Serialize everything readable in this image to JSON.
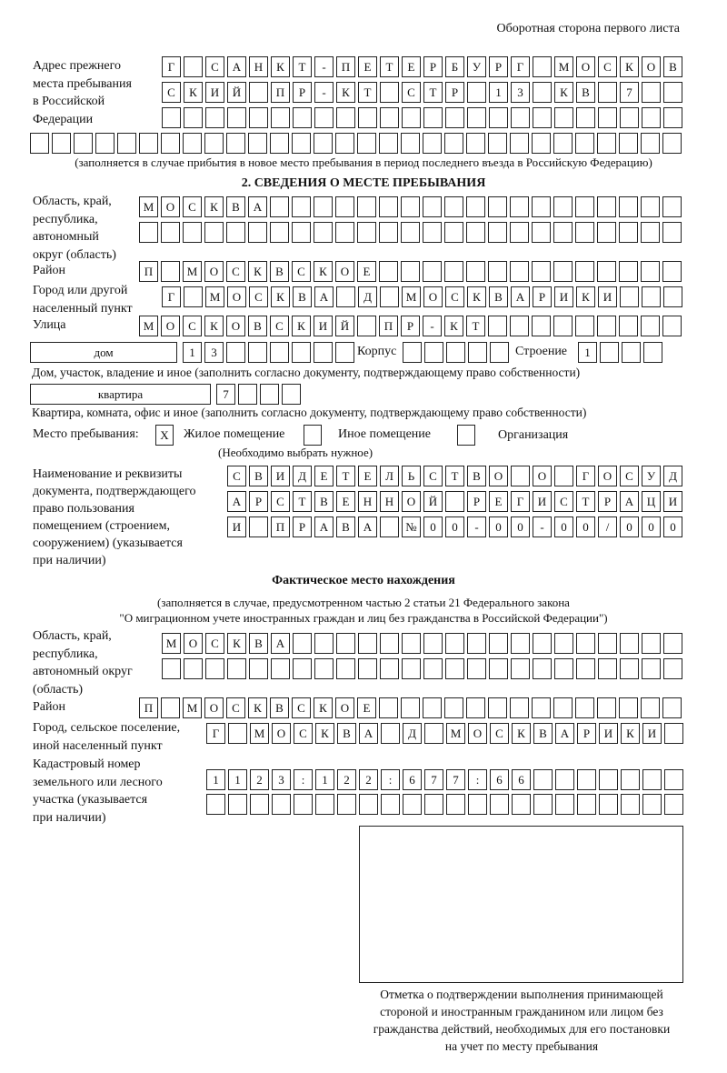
{
  "page_header": "Оборотная сторона первого листа",
  "previous_address": {
    "label": "Адрес прежнего\nместа пребывания\nв Российской\nФедерации",
    "row1": [
      "Г",
      "",
      "С",
      "А",
      "Н",
      "К",
      "Т",
      "-",
      "П",
      "Е",
      "Т",
      "Е",
      "Р",
      "Б",
      "У",
      "Р",
      "Г",
      "",
      "М",
      "О",
      "С",
      "К",
      "О",
      "В"
    ],
    "row2": [
      "С",
      "К",
      "И",
      "Й",
      "",
      "П",
      "Р",
      "-",
      "К",
      "Т",
      "",
      "С",
      "Т",
      "Р",
      "",
      "1",
      "3",
      "",
      "К",
      "В",
      "",
      "7",
      "",
      ""
    ],
    "row3": [
      "",
      "",
      "",
      "",
      "",
      "",
      "",
      "",
      "",
      "",
      "",
      "",
      "",
      "",
      "",
      "",
      "",
      "",
      "",
      "",
      "",
      "",
      "",
      ""
    ],
    "row4": [
      "",
      "",
      "",
      "",
      "",
      "",
      "",
      "",
      "",
      "",
      "",
      "",
      "",
      "",
      "",
      "",
      "",
      "",
      "",
      "",
      "",
      "",
      "",
      "",
      "",
      "",
      "",
      "",
      "",
      ""
    ],
    "note": "(заполняется в случае прибытия в новое место пребывания в период последнего въезда в Российскую Федерацию)"
  },
  "section2": {
    "title": "2. СВЕДЕНИЯ О МЕСТЕ ПРЕБЫВАНИЯ",
    "region_label": "Область, край,\nреспублика,\nавтономный\nокруг (область)",
    "region_row1": [
      "М",
      "О",
      "С",
      "К",
      "В",
      "А",
      "",
      "",
      "",
      "",
      "",
      "",
      "",
      "",
      "",
      "",
      "",
      "",
      "",
      "",
      "",
      "",
      "",
      "",
      ""
    ],
    "region_row2": [
      "",
      "",
      "",
      "",
      "",
      "",
      "",
      "",
      "",
      "",
      "",
      "",
      "",
      "",
      "",
      "",
      "",
      "",
      "",
      "",
      "",
      "",
      "",
      "",
      ""
    ],
    "district_label": "Район",
    "district_row": [
      "П",
      "",
      "М",
      "О",
      "С",
      "К",
      "В",
      "С",
      "К",
      "О",
      "Е",
      "",
      "",
      "",
      "",
      "",
      "",
      "",
      "",
      "",
      "",
      "",
      "",
      "",
      ""
    ],
    "city_label": "Город или другой\nнаселенный пункт",
    "city_row": [
      "Г",
      "",
      "М",
      "О",
      "С",
      "К",
      "В",
      "А",
      "",
      "Д",
      "",
      "М",
      "О",
      "С",
      "К",
      "В",
      "А",
      "Р",
      "И",
      "К",
      "И",
      "",
      "",
      ""
    ],
    "street_label": "Улица",
    "street_row": [
      "М",
      "О",
      "С",
      "К",
      "О",
      "В",
      "С",
      "К",
      "И",
      "Й",
      "",
      "П",
      "Р",
      "-",
      "К",
      "Т",
      "",
      "",
      "",
      "",
      "",
      "",
      "",
      "",
      ""
    ],
    "house_type": "дом",
    "house_cells": [
      "1",
      "3",
      "",
      "",
      "",
      "",
      "",
      ""
    ],
    "korpus_label": "Корпус",
    "korpus_cells": [
      "",
      "",
      "",
      "",
      ""
    ],
    "stroenie_label": "Строение",
    "stroenie_cells": [
      "1",
      "",
      "",
      ""
    ],
    "house_note": "Дом, участок, владение и иное (заполнить согласно документу, подтверждающему право собственности)",
    "apt_type": "квартира",
    "apt_cells": [
      "7",
      "",
      "",
      ""
    ],
    "apt_note": "Квартира, комната, офис и иное (заполнить согласно документу, подтверждающему право собственности)",
    "stay_place_label": "Место пребывания:",
    "options": [
      {
        "label": "Жилое помещение",
        "mark": "X",
        "checked": true
      },
      {
        "label": "Иное помещение",
        "mark": "",
        "checked": false
      },
      {
        "label": "Организация",
        "mark": "",
        "checked": false
      }
    ],
    "choose_note": "(Необходимо выбрать нужное)",
    "doc_label": "Наименование и реквизиты\nдокумента, подтверждающего\nправо пользования\nпомещением (строением,\nсооружением) (указывается\nпри наличии)",
    "doc_row1": [
      "С",
      "В",
      "И",
      "Д",
      "Е",
      "Т",
      "Е",
      "Л",
      "Ь",
      "С",
      "Т",
      "В",
      "О",
      "",
      "О",
      "",
      "Г",
      "О",
      "С",
      "У",
      "Д"
    ],
    "doc_row2": [
      "А",
      "Р",
      "С",
      "Т",
      "В",
      "Е",
      "Н",
      "Н",
      "О",
      "Й",
      "",
      "Р",
      "Е",
      "Г",
      "И",
      "С",
      "Т",
      "Р",
      "А",
      "Ц",
      "И"
    ],
    "doc_row3": [
      "И",
      "",
      "П",
      "Р",
      "А",
      "В",
      "А",
      "",
      "№",
      "0",
      "0",
      "-",
      "0",
      "0",
      "-",
      "0",
      "0",
      "/",
      "0",
      "0",
      "0"
    ]
  },
  "actual": {
    "title": "Фактическое место нахождения",
    "note1": "(заполняется в случае, предусмотренном частью 2 статьи 21 Федерального закона",
    "note2": "\"О миграционном учете иностранных граждан и лиц без гражданства в Российской Федерации\")",
    "region_label": "Область, край,\nреспублика,\nавтономный округ\n(область)",
    "region_row1": [
      "М",
      "О",
      "С",
      "К",
      "В",
      "А",
      "",
      "",
      "",
      "",
      "",
      "",
      "",
      "",
      "",
      "",
      "",
      "",
      "",
      "",
      "",
      "",
      "",
      ""
    ],
    "region_row2": [
      "",
      "",
      "",
      "",
      "",
      "",
      "",
      "",
      "",
      "",
      "",
      "",
      "",
      "",
      "",
      "",
      "",
      "",
      "",
      "",
      "",
      "",
      "",
      ""
    ],
    "district_label": "Район",
    "district_row": [
      "П",
      "",
      "М",
      "О",
      "С",
      "К",
      "В",
      "С",
      "К",
      "О",
      "Е",
      "",
      "",
      "",
      "",
      "",
      "",
      "",
      "",
      "",
      "",
      "",
      "",
      "",
      ""
    ],
    "city_label": "Город, сельское поселение,\nиной населенный пункт",
    "city_row": [
      "Г",
      "",
      "М",
      "О",
      "С",
      "К",
      "В",
      "А",
      "",
      "Д",
      "",
      "М",
      "О",
      "С",
      "К",
      "В",
      "А",
      "Р",
      "И",
      "К",
      "И",
      ""
    ],
    "cadastral_label": "Кадастровый номер\nземельного или лесного\nучастка (указывается\nпри наличии)",
    "cadastral_row1": [
      "1",
      "1",
      "2",
      "3",
      ":",
      "1",
      "2",
      "2",
      ":",
      "6",
      "7",
      "7",
      ":",
      "6",
      "6",
      "",
      "",
      "",
      "",
      "",
      "",
      ""
    ],
    "cadastral_row2": [
      "",
      "",
      "",
      "",
      "",
      "",
      "",
      "",
      "",
      "",
      "",
      "",
      "",
      "",
      "",
      "",
      "",
      "",
      "",
      "",
      "",
      ""
    ],
    "stamp_caption": "Отметка о подтверждении выполнения принимающей\nстороной и иностранным гражданином или лицом без\nгражданства действий, необходимых для его постановки\nна учет по месту пребывания"
  }
}
